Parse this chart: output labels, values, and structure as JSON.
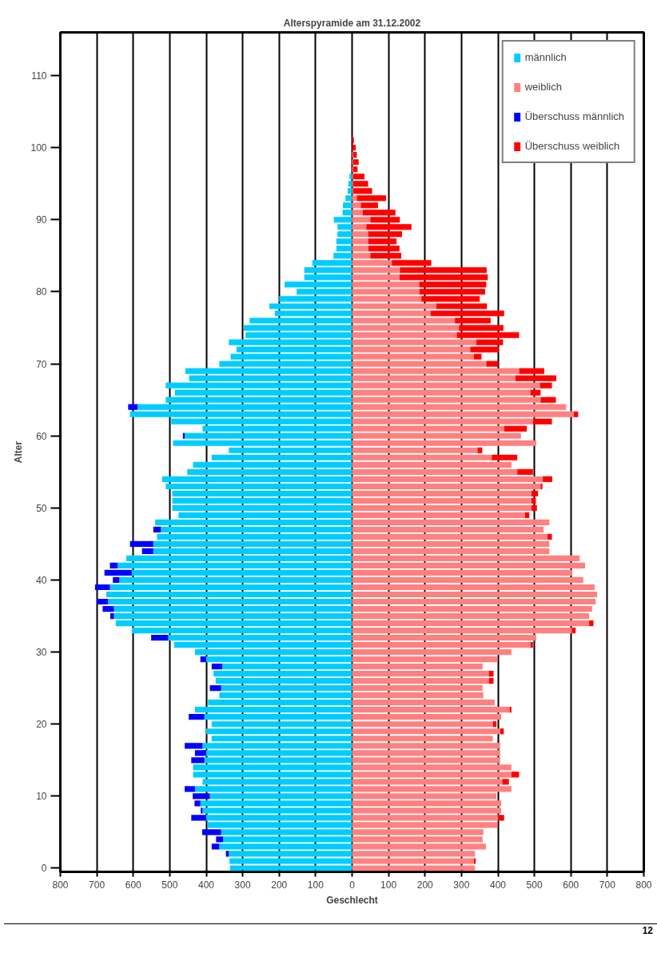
{
  "chart_data": {
    "type": "bar",
    "orientation": "horizontal",
    "stacked": true,
    "title": "Alterspyramide am 31.12.2002",
    "xlabel": "Geschlecht",
    "ylabel": "Alter",
    "annotations": [
      "12"
    ],
    "x": [
      0,
      1,
      2,
      3,
      4,
      5,
      6,
      7,
      8,
      9,
      10,
      11,
      12,
      13,
      14,
      15,
      16,
      17,
      18,
      19,
      20,
      21,
      22,
      23,
      24,
      25,
      26,
      27,
      28,
      29,
      30,
      31,
      32,
      33,
      34,
      35,
      36,
      37,
      38,
      39,
      40,
      41,
      42,
      43,
      44,
      45,
      46,
      47,
      48,
      49,
      50,
      51,
      52,
      53,
      54,
      55,
      56,
      57,
      58,
      59,
      60,
      61,
      62,
      63,
      64,
      65,
      66,
      67,
      68,
      69,
      70,
      71,
      72,
      73,
      74,
      75,
      76,
      77,
      78,
      79,
      80,
      81,
      82,
      83,
      84,
      85,
      86,
      87,
      88,
      89,
      90,
      91,
      92,
      93,
      94,
      95,
      96,
      97,
      98,
      99,
      100,
      101
    ],
    "series": [
      {
        "name": "männlich",
        "color": "#00ccff",
        "values": [
          -335,
          -336,
          -338,
          -364,
          -354,
          -359,
          -397,
          -400,
          -410,
          -416,
          -390,
          -431,
          -410,
          -436,
          -436,
          -405,
          -400,
          -410,
          -385,
          -400,
          -385,
          -405,
          -431,
          -395,
          -364,
          -359,
          -374,
          -380,
          -356,
          -400,
          -431,
          -488,
          -504,
          -604,
          -648,
          -653,
          -653,
          -669,
          -674,
          -664,
          -638,
          -604,
          -643,
          -619,
          -545,
          -545,
          -535,
          -524,
          -540,
          -476,
          -493,
          -493,
          -493,
          -511,
          -521,
          -452,
          -436,
          -385,
          -338,
          -491,
          -459,
          -410,
          -496,
          -609,
          -588,
          -511,
          -486,
          -511,
          -447,
          -457,
          -364,
          -333,
          -317,
          -338,
          -292,
          -297,
          -281,
          -212,
          -227,
          -200,
          -152,
          -185,
          -131,
          -131,
          -109,
          -51,
          -43,
          -43,
          -40,
          -40,
          -50,
          -26,
          -25,
          -18,
          -12,
          -10,
          -7,
          0,
          0,
          0,
          0,
          0
        ]
      },
      {
        "name": "weiblich",
        "color": "#ff8080",
        "values": [
          337,
          334,
          337,
          367,
          358,
          360,
          399,
          401,
          409,
          409,
          396,
          437,
          412,
          437,
          437,
          406,
          406,
          406,
          386,
          406,
          386,
          409,
          432,
          391,
          360,
          358,
          375,
          375,
          358,
          399,
          437,
          489,
          505,
          603,
          650,
          650,
          658,
          668,
          672,
          665,
          634,
          603,
          639,
          624,
          541,
          541,
          536,
          525,
          541,
          474,
          492,
          492,
          492,
          517,
          523,
          453,
          437,
          383,
          344,
          505,
          463,
          417,
          496,
          608,
          587,
          517,
          489,
          515,
          448,
          458,
          368,
          334,
          324,
          341,
          287,
          293,
          282,
          215,
          231,
          190,
          185,
          184,
          130,
          131,
          109,
          50,
          45,
          44,
          44,
          39,
          50,
          29,
          24,
          13,
          3,
          3,
          3,
          3,
          3,
          3,
          0,
          0
        ]
      },
      {
        "name": "Überschuss männlich",
        "color": "#0000ff",
        "values": [
          0,
          0,
          -8,
          -21,
          -19,
          -52,
          0,
          -41,
          -5,
          -16,
          -47,
          -28,
          0,
          0,
          0,
          -36,
          -31,
          -49,
          0,
          0,
          0,
          -43,
          0,
          0,
          0,
          -31,
          0,
          0,
          -29,
          -16,
          0,
          0,
          -47,
          0,
          0,
          -10,
          -31,
          -31,
          0,
          -41,
          -18,
          -75,
          -21,
          0,
          -31,
          -64,
          0,
          -21,
          0,
          0,
          0,
          0,
          0,
          0,
          0,
          0,
          0,
          0,
          0,
          0,
          -5,
          0,
          0,
          0,
          -26,
          0,
          0,
          0,
          0,
          0,
          0,
          0,
          0,
          0,
          0,
          0,
          0,
          0,
          0,
          0,
          0,
          0,
          0,
          0,
          0,
          0,
          0,
          0,
          0,
          0,
          0,
          0,
          0,
          0,
          0,
          0,
          0,
          0,
          0,
          0,
          0,
          0
        ]
      },
      {
        "name": "Überschuss weiblich",
        "color": "#ff0000",
        "values": [
          0,
          5,
          0,
          0,
          0,
          0,
          0,
          16,
          0,
          0,
          0,
          0,
          18,
          21,
          0,
          0,
          0,
          0,
          0,
          10,
          10,
          0,
          5,
          0,
          0,
          0,
          13,
          13,
          0,
          0,
          0,
          7,
          0,
          10,
          12,
          0,
          0,
          0,
          0,
          0,
          0,
          0,
          0,
          0,
          0,
          0,
          12,
          0,
          0,
          12,
          15,
          12,
          18,
          5,
          26,
          43,
          0,
          70,
          13,
          0,
          0,
          62,
          52,
          12,
          0,
          42,
          28,
          33,
          112,
          69,
          33,
          21,
          78,
          73,
          171,
          122,
          98,
          202,
          139,
          160,
          180,
          184,
          242,
          238,
          108,
          85,
          85,
          78,
          93,
          124,
          81,
          90,
          47,
          80,
          52,
          41,
          31,
          12,
          15,
          10,
          10,
          5
        ]
      }
    ],
    "xlim": [
      -800,
      800
    ],
    "xticks": [
      {
        "value": -800,
        "label": "800"
      },
      {
        "value": -700,
        "label": "700"
      },
      {
        "value": -600,
        "label": "600"
      },
      {
        "value": -500,
        "label": "500"
      },
      {
        "value": -400,
        "label": "400"
      },
      {
        "value": -300,
        "label": "300"
      },
      {
        "value": -200,
        "label": "200"
      },
      {
        "value": -100,
        "label": "100"
      },
      0,
      100,
      200,
      300,
      400,
      500,
      600,
      700,
      800
    ],
    "ylim": [
      -0.5,
      116
    ],
    "yticks": [
      0,
      10,
      20,
      30,
      40,
      50,
      60,
      70,
      80,
      90,
      100,
      110
    ],
    "grid": "x",
    "legend": "top right"
  }
}
